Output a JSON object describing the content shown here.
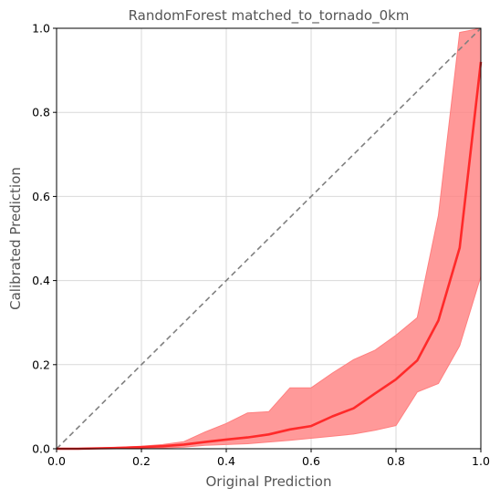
{
  "chart_data": {
    "type": "line",
    "title": "RandomForest matched_to_tornado_0km",
    "xlabel": "Original Prediction",
    "ylabel": "Calibrated Prediction",
    "xlim": [
      0.0,
      1.0
    ],
    "ylim": [
      0.0,
      1.0
    ],
    "xticks": [
      "0.0",
      "0.2",
      "0.4",
      "0.6",
      "0.8",
      "1.0"
    ],
    "yticks": [
      "0.0",
      "0.2",
      "0.4",
      "0.6",
      "0.8",
      "1.0"
    ],
    "grid": true,
    "legend": "none",
    "colors": {
      "line": "#ff2a2a",
      "band": "#ff7f7f",
      "diagonal": "#808080",
      "grid": "#d9d9d9"
    },
    "reference_line": {
      "style": "dashed",
      "x": [
        0.0,
        1.0
      ],
      "y": [
        0.0,
        1.0
      ]
    },
    "x": [
      0.0,
      0.05,
      0.1,
      0.15,
      0.2,
      0.25,
      0.3,
      0.35,
      0.4,
      0.45,
      0.5,
      0.55,
      0.6,
      0.65,
      0.7,
      0.75,
      0.8,
      0.85,
      0.9,
      0.95,
      1.0
    ],
    "series": [
      {
        "values": [
          0.0,
          0.0,
          0.001,
          0.002,
          0.004,
          0.006,
          0.01,
          0.016,
          0.022,
          0.027,
          0.034,
          0.046,
          0.054,
          0.077,
          0.096,
          0.131,
          0.165,
          0.21,
          0.305,
          0.478,
          0.92
        ],
        "lower": [
          0.0,
          0.0,
          0.0,
          0.0,
          0.0,
          0.002,
          0.004,
          0.008,
          0.01,
          0.012,
          0.016,
          0.02,
          0.025,
          0.03,
          0.035,
          0.044,
          0.055,
          0.135,
          0.155,
          0.245,
          0.41
        ],
        "upper": [
          0.0,
          0.001,
          0.002,
          0.004,
          0.006,
          0.01,
          0.017,
          0.04,
          0.06,
          0.085,
          0.088,
          0.145,
          0.145,
          0.18,
          0.212,
          0.234,
          0.27,
          0.312,
          0.555,
          0.99,
          1.0
        ]
      }
    ]
  }
}
